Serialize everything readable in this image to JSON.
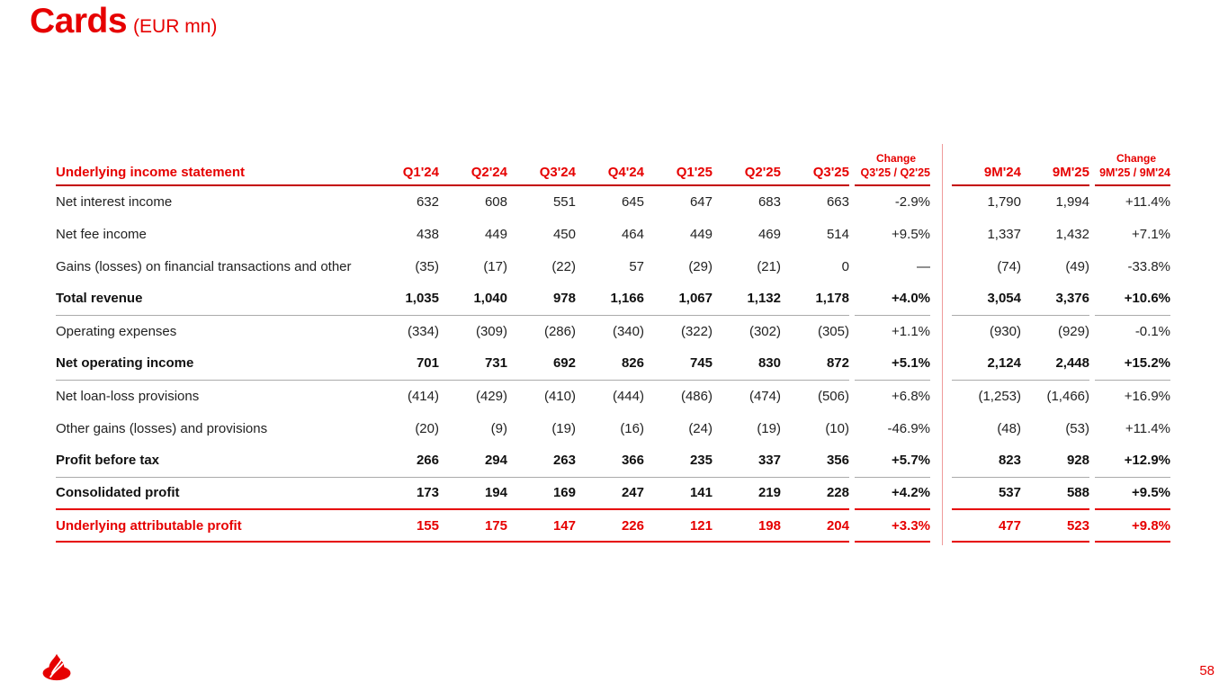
{
  "slide": {
    "title": "Cards",
    "title_unit": "(EUR mn)",
    "page_number": "58",
    "logo_icon": "santander-flame-icon"
  },
  "colors": {
    "brand_red": "#e60000",
    "header_rule_red": "#c40000",
    "row_rule_red": "#e60000",
    "gray_rule": "#ababab",
    "divider_pink": "#ef9a9a",
    "text_dark": "#222222"
  },
  "table": {
    "header": {
      "label": "Underlying income statement",
      "quarters": [
        "Q1'24",
        "Q2'24",
        "Q3'24",
        "Q4'24",
        "Q1'25",
        "Q2'25",
        "Q3'25"
      ],
      "change_quarter_title": "Change",
      "change_quarter_sub": "Q3'25 / Q2'25",
      "periods": [
        "9M'24",
        "9M'25"
      ],
      "change_period_title": "Change",
      "change_period_sub": "9M'25 / 9M'24"
    },
    "rows": [
      {
        "label": "Net interest income",
        "emphasis": "normal",
        "quarters": [
          "632",
          "608",
          "551",
          "645",
          "647",
          "683",
          "663"
        ],
        "change_q": "-2.9%",
        "periods": [
          "1,790",
          "1,994"
        ],
        "change_9m": "+11.4%",
        "rule_below": "none"
      },
      {
        "label": "Net fee income",
        "emphasis": "normal",
        "quarters": [
          "438",
          "449",
          "450",
          "464",
          "449",
          "469",
          "514"
        ],
        "change_q": "+9.5%",
        "periods": [
          "1,337",
          "1,432"
        ],
        "change_9m": "+7.1%",
        "rule_below": "none"
      },
      {
        "label": "Gains (losses) on financial transactions and other",
        "emphasis": "normal",
        "quarters": [
          "(35)",
          "(17)",
          "(22)",
          "57",
          "(29)",
          "(21)",
          "0"
        ],
        "change_q": "—",
        "periods": [
          "(74)",
          "(49)"
        ],
        "change_9m": "-33.8%",
        "rule_below": "none"
      },
      {
        "label": "Total revenue",
        "emphasis": "bold",
        "quarters": [
          "1,035",
          "1,040",
          "978",
          "1,166",
          "1,067",
          "1,132",
          "1,178"
        ],
        "change_q": "+4.0%",
        "periods": [
          "3,054",
          "3,376"
        ],
        "change_9m": "+10.6%",
        "rule_below": "gray"
      },
      {
        "label": "Operating expenses",
        "emphasis": "normal",
        "quarters": [
          "(334)",
          "(309)",
          "(286)",
          "(340)",
          "(322)",
          "(302)",
          "(305)"
        ],
        "change_q": "+1.1%",
        "periods": [
          "(930)",
          "(929)"
        ],
        "change_9m": "-0.1%",
        "rule_below": "none"
      },
      {
        "label": "Net operating income",
        "emphasis": "bold",
        "quarters": [
          "701",
          "731",
          "692",
          "826",
          "745",
          "830",
          "872"
        ],
        "change_q": "+5.1%",
        "periods": [
          "2,124",
          "2,448"
        ],
        "change_9m": "+15.2%",
        "rule_below": "gray"
      },
      {
        "label": "Net loan-loss provisions",
        "emphasis": "normal",
        "quarters": [
          "(414)",
          "(429)",
          "(410)",
          "(444)",
          "(486)",
          "(474)",
          "(506)"
        ],
        "change_q": "+6.8%",
        "periods": [
          "(1,253)",
          "(1,466)"
        ],
        "change_9m": "+16.9%",
        "rule_below": "none"
      },
      {
        "label": "Other gains (losses) and provisions",
        "emphasis": "normal",
        "quarters": [
          "(20)",
          "(9)",
          "(19)",
          "(16)",
          "(24)",
          "(19)",
          "(10)"
        ],
        "change_q": "-46.9%",
        "periods": [
          "(48)",
          "(53)"
        ],
        "change_9m": "+11.4%",
        "rule_below": "none"
      },
      {
        "label": "Profit before tax",
        "emphasis": "bold",
        "quarters": [
          "266",
          "294",
          "263",
          "366",
          "235",
          "337",
          "356"
        ],
        "change_q": "+5.7%",
        "periods": [
          "823",
          "928"
        ],
        "change_9m": "+12.9%",
        "rule_below": "gray"
      },
      {
        "label": "Consolidated profit",
        "emphasis": "bold",
        "quarters": [
          "173",
          "194",
          "169",
          "247",
          "141",
          "219",
          "228"
        ],
        "change_q": "+4.2%",
        "periods": [
          "537",
          "588"
        ],
        "change_9m": "+9.5%",
        "rule_below": "red"
      },
      {
        "label": "Underlying attributable profit",
        "emphasis": "bold-red",
        "quarters": [
          "155",
          "175",
          "147",
          "226",
          "121",
          "198",
          "204"
        ],
        "change_q": "+3.3%",
        "periods": [
          "477",
          "523"
        ],
        "change_9m": "+9.8%",
        "rule_below": "red"
      }
    ]
  }
}
